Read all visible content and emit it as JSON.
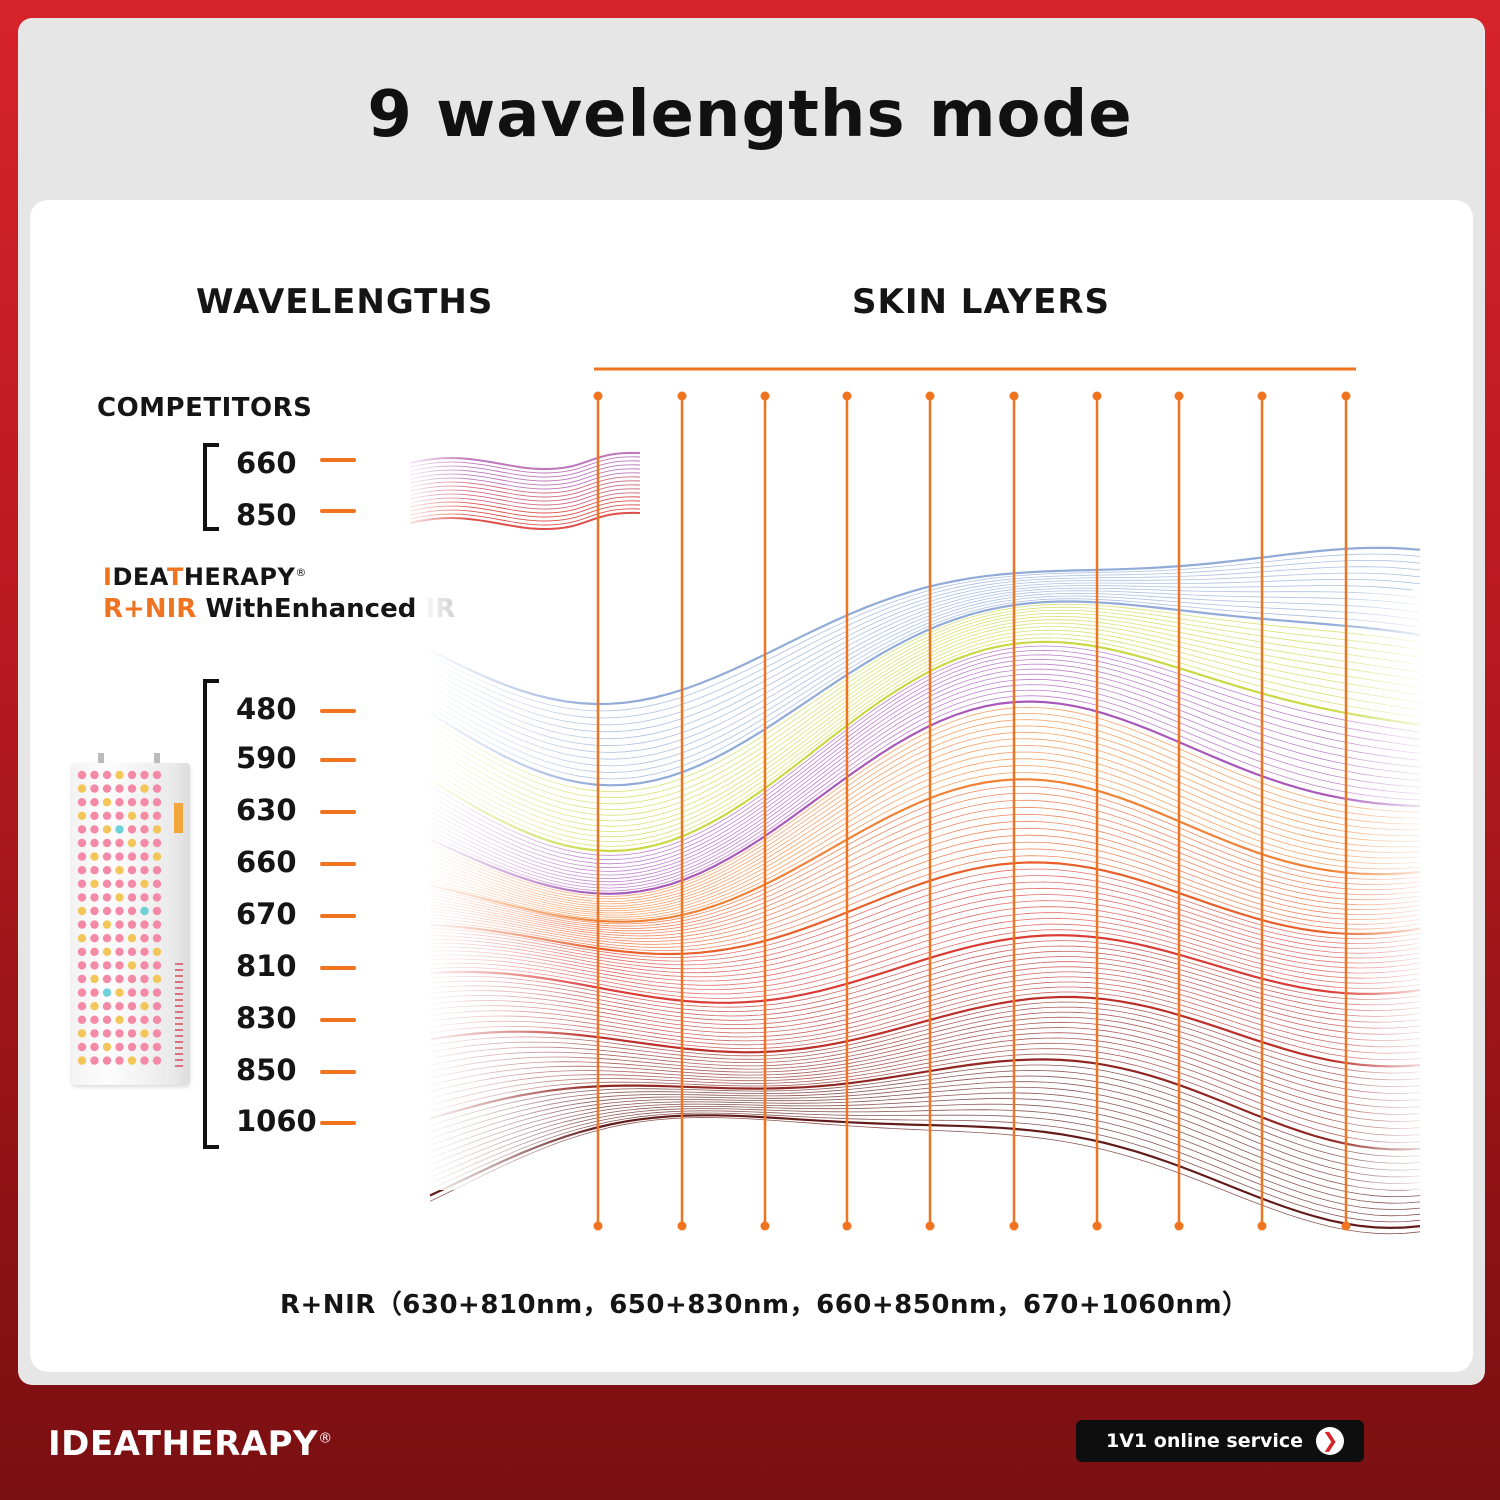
{
  "title": "9 wavelengths mode",
  "columns": {
    "left_heading": "WAVELENGTHS",
    "right_heading": "SKIN LAYERS"
  },
  "competitors": {
    "label": "COMPETITORS",
    "wavelengths": [
      "660",
      "850"
    ]
  },
  "brand_block": {
    "brand_parts": [
      "I",
      "DEA",
      "T",
      "HERAPY"
    ],
    "registered": "®",
    "line2_accent": "R+NIR",
    "line2_rest": " WithEnhanced IR",
    "wavelengths": [
      "480",
      "590",
      "630",
      "660",
      "670",
      "810",
      "830",
      "850",
      "1060"
    ]
  },
  "footnote": "R+NIR（630+810nm，650+830nm，660+850nm，670+1060nm）",
  "footer": {
    "brand": "IDEATHERAPY",
    "registered": "®",
    "service_label": "1V1 online service",
    "service_icon": "chevron-right-icon"
  },
  "colors": {
    "accent": "#f07320",
    "background_red": "#d7232a",
    "wave_colors": [
      "#8aa6d6",
      "#c7d63a",
      "#a24fb5",
      "#f07a2a",
      "#e8561f",
      "#d8302a",
      "#b8231f",
      "#8a1a16",
      "#5a0f0d"
    ]
  }
}
